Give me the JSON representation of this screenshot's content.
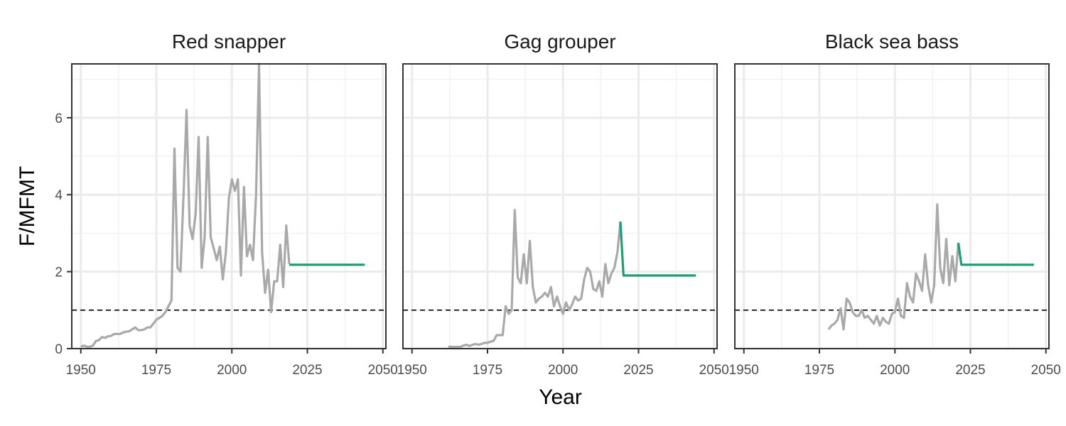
{
  "chart_data": {
    "type": "line",
    "xlabel": "Year",
    "ylabel": "F/MFMT",
    "xlim": [
      1947,
      2051
    ],
    "ylim": [
      0,
      7.4
    ],
    "x_ticks": [
      1950,
      1975,
      2000,
      2025,
      2050
    ],
    "y_ticks": [
      0,
      2,
      4,
      6
    ],
    "reference_line": 1,
    "grid": true,
    "colors": {
      "historical": "#a9a9a9",
      "projection": "#1b9e77",
      "reference": "#000000"
    },
    "panels": [
      {
        "title": "Red snapper",
        "historical": {
          "x": [
            1950,
            1951,
            1952,
            1953,
            1954,
            1955,
            1956,
            1957,
            1958,
            1959,
            1960,
            1961,
            1962,
            1963,
            1964,
            1965,
            1966,
            1967,
            1968,
            1969,
            1970,
            1971,
            1972,
            1973,
            1974,
            1975,
            1976,
            1977,
            1978,
            1979,
            1980,
            1981,
            1982,
            1983,
            1984,
            1985,
            1986,
            1987,
            1988,
            1989,
            1990,
            1991,
            1992,
            1993,
            1994,
            1995,
            1996,
            1997,
            1998,
            1999,
            2000,
            2001,
            2002,
            2003,
            2004,
            2005,
            2006,
            2007,
            2008,
            2009,
            2010,
            2011,
            2012,
            2013,
            2014,
            2015,
            2016,
            2017,
            2018,
            2019
          ],
          "y": [
            0.05,
            0.08,
            0.05,
            0.05,
            0.08,
            0.2,
            0.22,
            0.3,
            0.28,
            0.32,
            0.33,
            0.38,
            0.38,
            0.38,
            0.42,
            0.44,
            0.45,
            0.5,
            0.55,
            0.48,
            0.48,
            0.5,
            0.55,
            0.55,
            0.65,
            0.75,
            0.8,
            0.85,
            0.95,
            1.1,
            1.25,
            5.2,
            2.1,
            2.0,
            4.0,
            6.2,
            3.2,
            2.85,
            3.5,
            5.5,
            2.1,
            2.9,
            5.5,
            2.9,
            2.6,
            2.3,
            2.65,
            1.8,
            2.5,
            3.9,
            4.4,
            4.1,
            4.4,
            1.9,
            4.2,
            2.4,
            2.7,
            2.3,
            4.0,
            7.4,
            2.5,
            1.45,
            2.05,
            0.95,
            1.75,
            1.75,
            2.7,
            1.6,
            3.2,
            2.2
          ]
        },
        "projection": {
          "x": [
            2019,
            2044
          ],
          "y": [
            2.18,
            2.18
          ]
        }
      },
      {
        "title": "Gag grouper",
        "historical": {
          "x": [
            1962,
            1963,
            1964,
            1965,
            1966,
            1967,
            1968,
            1969,
            1970,
            1971,
            1972,
            1973,
            1974,
            1975,
            1976,
            1977,
            1978,
            1979,
            1980,
            1981,
            1982,
            1983,
            1984,
            1985,
            1986,
            1987,
            1988,
            1989,
            1990,
            1991,
            1992,
            1993,
            1994,
            1995,
            1996,
            1997,
            1998,
            1999,
            2000,
            2001,
            2002,
            2003,
            2004,
            2005,
            2006,
            2007,
            2008,
            2009,
            2010,
            2011,
            2012,
            2013,
            2014,
            2015,
            2016,
            2017,
            2018,
            2019
          ],
          "y": [
            0.05,
            0.05,
            0.04,
            0.05,
            0.04,
            0.08,
            0.1,
            0.07,
            0.1,
            0.12,
            0.1,
            0.12,
            0.15,
            0.15,
            0.18,
            0.2,
            0.35,
            0.35,
            0.35,
            1.1,
            0.9,
            1.0,
            3.6,
            1.85,
            1.7,
            2.45,
            1.7,
            2.8,
            1.6,
            1.2,
            1.3,
            1.35,
            1.45,
            1.35,
            1.6,
            1.1,
            1.35,
            1.1,
            0.9,
            1.2,
            1.0,
            1.15,
            1.35,
            1.25,
            1.3,
            1.8,
            2.1,
            2.0,
            1.55,
            1.5,
            1.75,
            1.35,
            2.2,
            1.7,
            1.95,
            2.1,
            2.5,
            3.3
          ]
        },
        "projection": {
          "x": [
            2019,
            2020,
            2044
          ],
          "y": [
            3.3,
            1.9,
            1.9
          ]
        }
      },
      {
        "title": "Black sea bass",
        "historical": {
          "x": [
            1978,
            1979,
            1980,
            1981,
            1982,
            1983,
            1984,
            1985,
            1986,
            1987,
            1988,
            1989,
            1990,
            1991,
            1992,
            1993,
            1994,
            1995,
            1996,
            1997,
            1998,
            1999,
            2000,
            2001,
            2002,
            2003,
            2004,
            2005,
            2006,
            2007,
            2008,
            2009,
            2010,
            2011,
            2012,
            2013,
            2014,
            2015,
            2016,
            2017,
            2018,
            2019,
            2020,
            2021
          ],
          "y": [
            0.5,
            0.6,
            0.65,
            0.75,
            1.05,
            0.5,
            1.3,
            1.2,
            0.95,
            0.85,
            0.85,
            1.0,
            0.8,
            0.85,
            0.75,
            0.65,
            0.85,
            0.6,
            0.8,
            0.7,
            0.65,
            0.9,
            0.95,
            1.3,
            0.85,
            0.8,
            1.7,
            1.35,
            1.2,
            1.95,
            1.75,
            1.5,
            2.45,
            1.65,
            1.2,
            1.65,
            3.75,
            2.1,
            1.7,
            2.85,
            1.65,
            2.4,
            1.75,
            2.75
          ]
        },
        "projection": {
          "x": [
            2021,
            2022,
            2046
          ],
          "y": [
            2.75,
            2.18,
            2.18
          ]
        }
      }
    ]
  }
}
